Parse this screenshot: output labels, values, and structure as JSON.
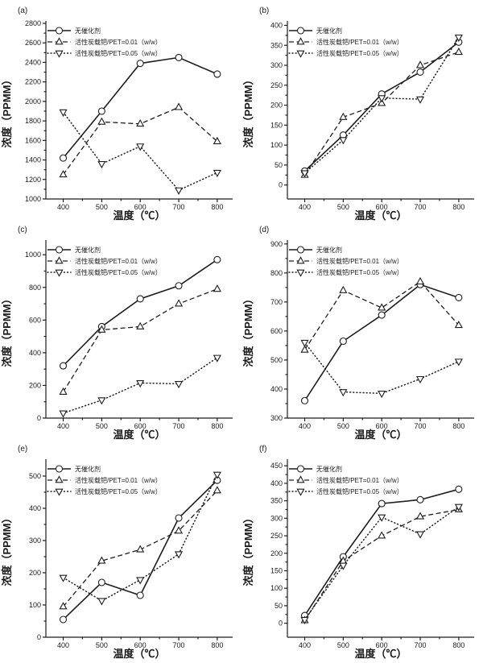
{
  "style": {
    "ink": "#1d1d1d",
    "background": "#ffffff",
    "marker_fill": "#ffffff"
  },
  "chart_data": [
    {
      "type": "line",
      "panel_label": "(a)",
      "xlabel": "温度（℃）",
      "ylabel": "浓度（PPMM）",
      "x": [
        400,
        500,
        600,
        700,
        800
      ],
      "xticks": [
        400,
        500,
        600,
        700,
        800
      ],
      "xlim": [
        355,
        840
      ],
      "yticks": [
        1000,
        1200,
        1400,
        1600,
        1800,
        2000,
        2200,
        2400,
        2600,
        2800
      ],
      "ylim": [
        1000,
        2800
      ],
      "minor_ticks": true,
      "legend_position": "top-left",
      "series": [
        {
          "name": "无催化剂",
          "marker": "circle",
          "linestyle": "solid",
          "values": [
            1420,
            1900,
            2390,
            2450,
            2280
          ]
        },
        {
          "name": "活性炭载钯/PET=0.01（w/w）",
          "marker": "triangle-up",
          "linestyle": "dashed",
          "values": [
            1250,
            1790,
            1770,
            1940,
            1590
          ]
        },
        {
          "name": "活性炭载钯/PET=0.05（w/w）",
          "marker": "triangle-down",
          "linestyle": "dotted",
          "values": [
            1890,
            1360,
            1540,
            1090,
            1270
          ]
        }
      ]
    },
    {
      "type": "line",
      "panel_label": "(b)",
      "xlabel": "温度（℃）",
      "ylabel": "浓度（PPMM）",
      "x": [
        400,
        500,
        600,
        700,
        800
      ],
      "xticks": [
        400,
        500,
        600,
        700,
        800
      ],
      "xlim": [
        355,
        840
      ],
      "yticks": [
        0,
        50,
        100,
        150,
        200,
        250,
        300,
        350,
        400
      ],
      "ylim": [
        -35,
        405
      ],
      "minor_ticks": true,
      "legend_position": "top-left",
      "series": [
        {
          "name": "无催化剂",
          "marker": "circle",
          "linestyle": "solid",
          "values": [
            35,
            125,
            228,
            283,
            358
          ]
        },
        {
          "name": "活性炭载钯/PET=0.01（w/w）",
          "marker": "triangle-up",
          "linestyle": "dashed",
          "values": [
            25,
            170,
            205,
            300,
            333
          ]
        },
        {
          "name": "活性炭载钯/PET=0.05（w/w）",
          "marker": "triangle-down",
          "linestyle": "dotted",
          "values": [
            30,
            113,
            218,
            215,
            370
          ]
        }
      ]
    },
    {
      "type": "line",
      "panel_label": "(c)",
      "xlabel": "温度（℃）",
      "ylabel": "浓度（PPMM）",
      "x": [
        400,
        500,
        600,
        700,
        800
      ],
      "xticks": [
        400,
        500,
        600,
        700,
        800
      ],
      "xlim": [
        355,
        840
      ],
      "yticks": [
        0,
        200,
        400,
        600,
        800,
        1000
      ],
      "ylim": [
        0,
        1075
      ],
      "minor_ticks": true,
      "legend_position": "top-left",
      "series": [
        {
          "name": "无催化剂",
          "marker": "circle",
          "linestyle": "solid",
          "values": [
            320,
            560,
            730,
            810,
            970
          ]
        },
        {
          "name": "活性炭载钯/PET=0.01（w/w）",
          "marker": "triangle-up",
          "linestyle": "dashed",
          "values": [
            160,
            540,
            560,
            700,
            790
          ]
        },
        {
          "name": "活性炭载钯/PET=0.05（w/w）",
          "marker": "triangle-down",
          "linestyle": "dotted",
          "values": [
            30,
            110,
            215,
            210,
            370
          ]
        }
      ]
    },
    {
      "type": "line",
      "panel_label": "(d)",
      "xlabel": "温度（℃）",
      "ylabel": "浓度（PPMM）",
      "x": [
        400,
        500,
        600,
        700,
        800
      ],
      "xticks": [
        400,
        500,
        600,
        700,
        800
      ],
      "xlim": [
        355,
        840
      ],
      "yticks": [
        300,
        400,
        500,
        600,
        700,
        800,
        900
      ],
      "ylim": [
        300,
        905
      ],
      "minor_ticks": true,
      "legend_position": "top-left",
      "series": [
        {
          "name": "无催化剂",
          "marker": "circle",
          "linestyle": "solid",
          "values": [
            360,
            565,
            655,
            760,
            715
          ]
        },
        {
          "name": "活性炭载钯/PET=0.01（w/w）",
          "marker": "triangle-up",
          "linestyle": "dashed",
          "values": [
            535,
            740,
            680,
            770,
            620
          ]
        },
        {
          "name": "活性炭载钯/PET=0.05（w/w）",
          "marker": "triangle-down",
          "linestyle": "dotted",
          "values": [
            560,
            390,
            385,
            435,
            495
          ]
        }
      ]
    },
    {
      "type": "line",
      "panel_label": "(e)",
      "xlabel": "温度（℃）",
      "ylabel": "浓度（PPMM）",
      "x": [
        400,
        500,
        600,
        700,
        800
      ],
      "xticks": [
        400,
        500,
        600,
        700,
        800
      ],
      "xlim": [
        355,
        840
      ],
      "yticks": [
        0,
        100,
        200,
        300,
        400,
        500
      ],
      "ylim": [
        0,
        545
      ],
      "minor_ticks": true,
      "legend_position": "top-left",
      "series": [
        {
          "name": "无催化剂",
          "marker": "circle",
          "linestyle": "solid",
          "values": [
            55,
            170,
            130,
            370,
            487
          ]
        },
        {
          "name": "活性炭载钯/PET=0.01（w/w）",
          "marker": "triangle-up",
          "linestyle": "dashed",
          "values": [
            95,
            237,
            272,
            330,
            455
          ]
        },
        {
          "name": "活性炭载钯/PET=0.05（w/w）",
          "marker": "triangle-down",
          "linestyle": "dotted",
          "values": [
            185,
            113,
            178,
            258,
            505
          ]
        }
      ]
    },
    {
      "type": "line",
      "panel_label": "(f)",
      "xlabel": "温度（℃）",
      "ylabel": "浓度（PPMM）",
      "x": [
        400,
        500,
        600,
        700,
        800
      ],
      "xticks": [
        400,
        500,
        600,
        700,
        800
      ],
      "xlim": [
        355,
        840
      ],
      "yticks": [
        0,
        50,
        100,
        150,
        200,
        250,
        300,
        350,
        400,
        450
      ],
      "ylim": [
        -40,
        462
      ],
      "minor_ticks": true,
      "legend_position": "top-left",
      "series": [
        {
          "name": "无催化剂",
          "marker": "circle",
          "linestyle": "solid",
          "values": [
            22,
            190,
            342,
            353,
            383
          ]
        },
        {
          "name": "活性炭载钯/PET=0.01（w/w）",
          "marker": "triangle-up",
          "linestyle": "dashed",
          "values": [
            8,
            178,
            250,
            305,
            325
          ]
        },
        {
          "name": "活性炭载钯/PET=0.05（w/w）",
          "marker": "triangle-down",
          "linestyle": "dotted",
          "values": [
            10,
            165,
            303,
            255,
            333
          ]
        }
      ]
    }
  ]
}
